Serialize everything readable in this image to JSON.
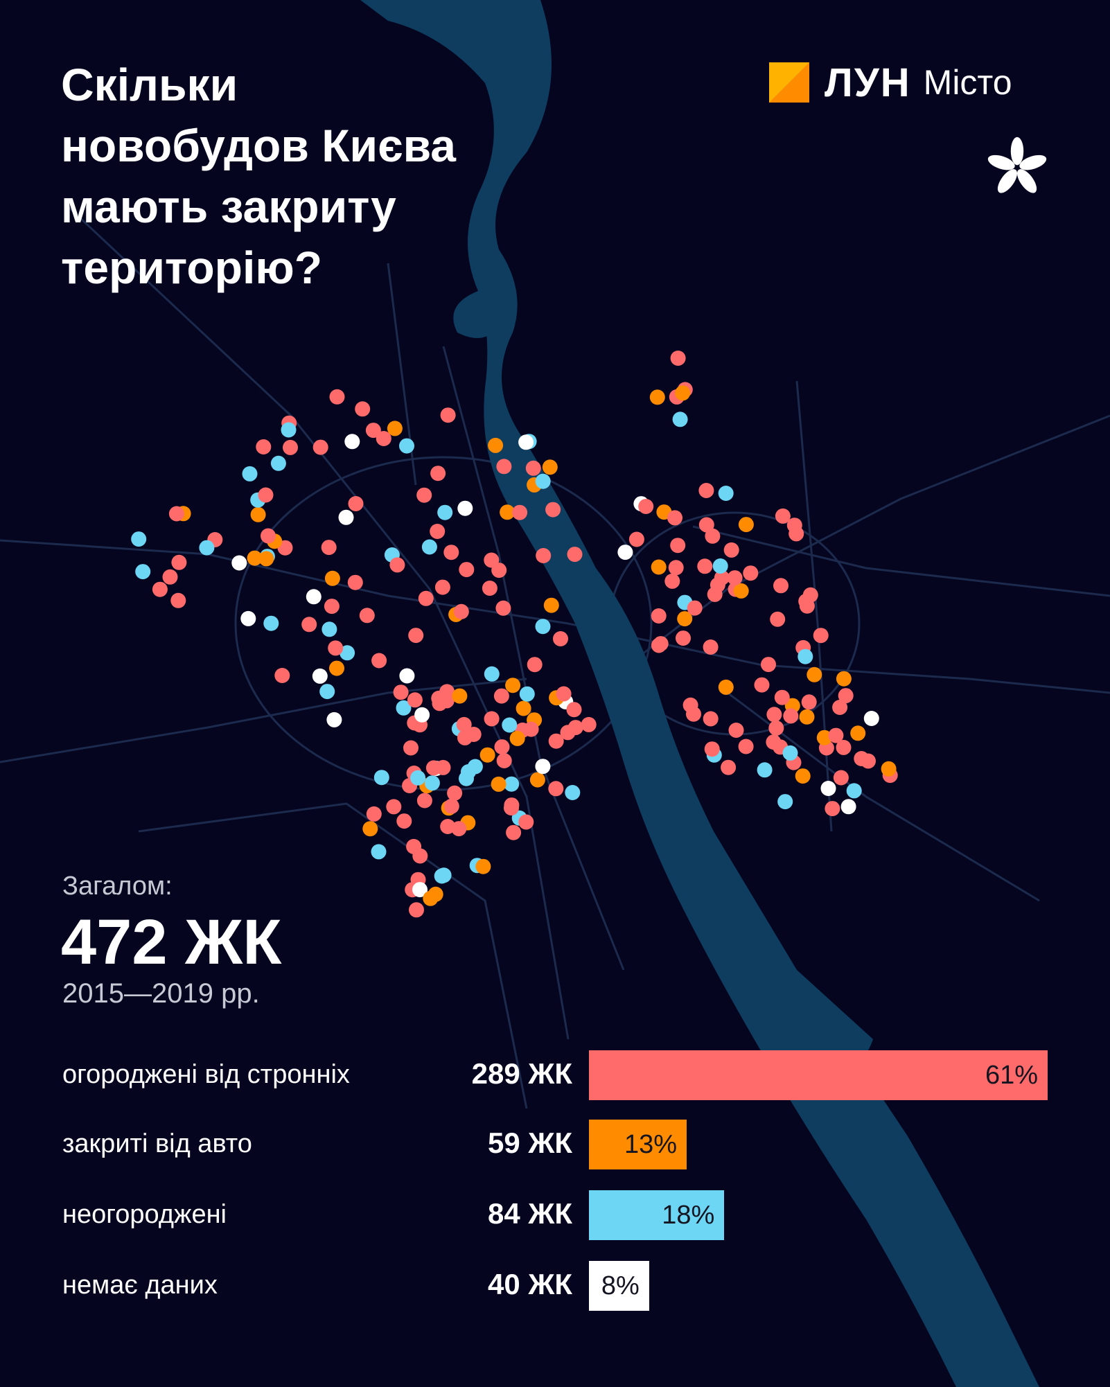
{
  "title_lines": [
    "Скільки",
    "новобудов Києва",
    "мають закриту",
    "територію?"
  ],
  "logo": {
    "brand": "ЛУН",
    "city": "Місто"
  },
  "totals": {
    "label": "Загалом:",
    "value": "472 ЖК",
    "years": "2015—2019 рр."
  },
  "colors": {
    "background": "#05051f",
    "water": "#0f3d5f",
    "roads": "#1c2a4e",
    "fenced": "#ff6b6b",
    "closed_to_cars": "#ff8c00",
    "unfenced": "#6dd6f5",
    "no_data": "#ffffff",
    "logo_orange": "#ff9d00"
  },
  "chart_data": {
    "type": "bar",
    "orientation": "horizontal",
    "total": 472,
    "categories": [
      "огороджені від стронніх",
      "закриті від авто",
      "неогороджені",
      "немає даних"
    ],
    "counts": [
      289,
      59,
      84,
      40
    ],
    "count_labels": [
      "289 ЖК",
      "59 ЖК",
      "84 ЖК",
      "40 ЖК"
    ],
    "percent": [
      61,
      13,
      18,
      8
    ],
    "percent_labels": [
      "61%",
      "13%",
      "18%",
      "8%"
    ],
    "colors": [
      "#ff6b6b",
      "#ff8c00",
      "#6dd6f5",
      "#ffffff"
    ]
  }
}
